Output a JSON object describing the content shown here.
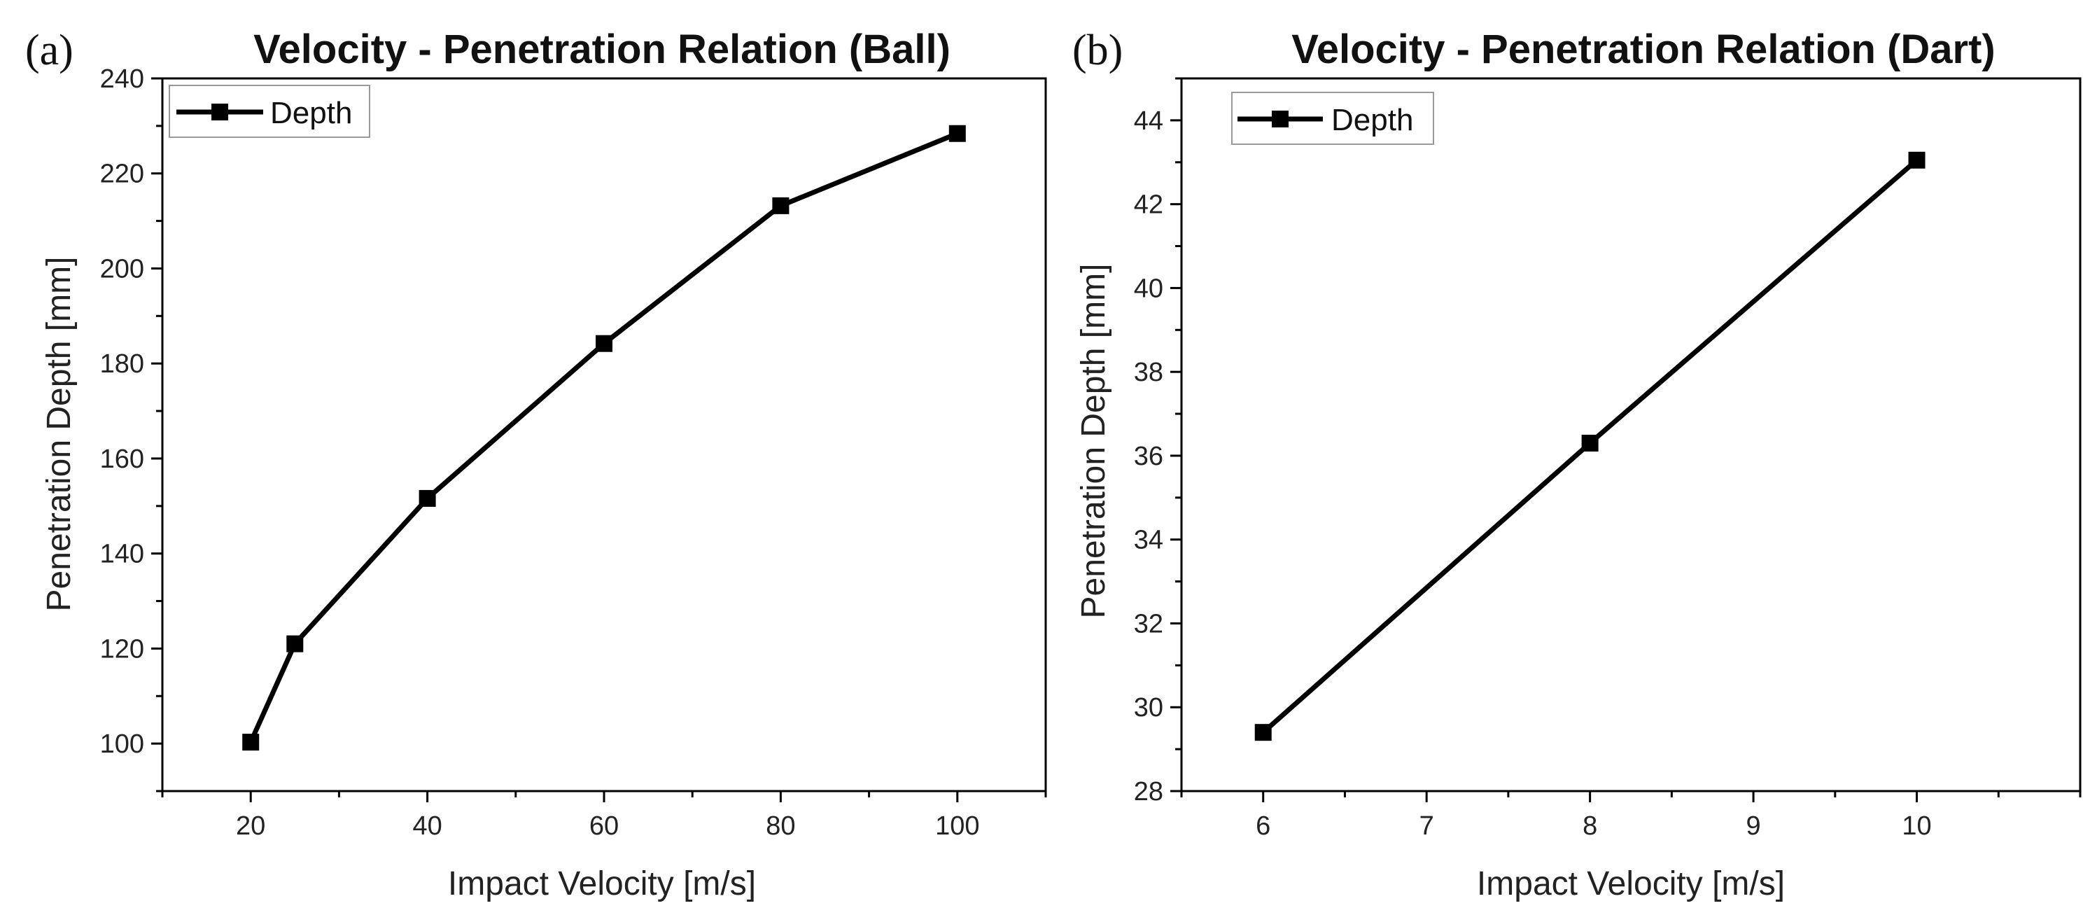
{
  "chart_data": [
    {
      "type": "line",
      "panel_label": "(a)",
      "title": "Velocity - Penetration Relation (Ball)",
      "xlabel": "Impact Velocity [m/s]",
      "ylabel": "Penetration Depth [mm]",
      "xlim": [
        10,
        110
      ],
      "ylim": [
        90,
        240
      ],
      "xticks": [
        20,
        40,
        60,
        80,
        100
      ],
      "yticks": [
        100,
        120,
        140,
        160,
        180,
        200,
        220,
        240
      ],
      "grid": false,
      "legend_position": "top-left",
      "series": [
        {
          "name": "Depth",
          "marker": "square",
          "color": "#000000",
          "x": [
            20,
            25,
            40,
            60,
            80,
            100
          ],
          "values": [
            100.3,
            121.0,
            151.6,
            184.2,
            213.2,
            228.4
          ]
        }
      ]
    },
    {
      "type": "line",
      "panel_label": "(b)",
      "title": "Velocity - Penetration Relation (Dart)",
      "xlabel": "Impact Velocity [m/s]",
      "ylabel": "Penetration Depth [mm]",
      "xlim": [
        5.5,
        11
      ],
      "ylim": [
        28,
        45
      ],
      "xticks": [
        6,
        7,
        8,
        9,
        10
      ],
      "yticks": [
        28,
        30,
        32,
        34,
        36,
        38,
        40,
        42,
        44
      ],
      "grid": false,
      "legend_position": "top-left",
      "series": [
        {
          "name": "Depth",
          "marker": "square",
          "color": "#000000",
          "x": [
            6,
            8,
            10
          ],
          "values": [
            29.4,
            36.3,
            43.05
          ]
        }
      ]
    }
  ]
}
